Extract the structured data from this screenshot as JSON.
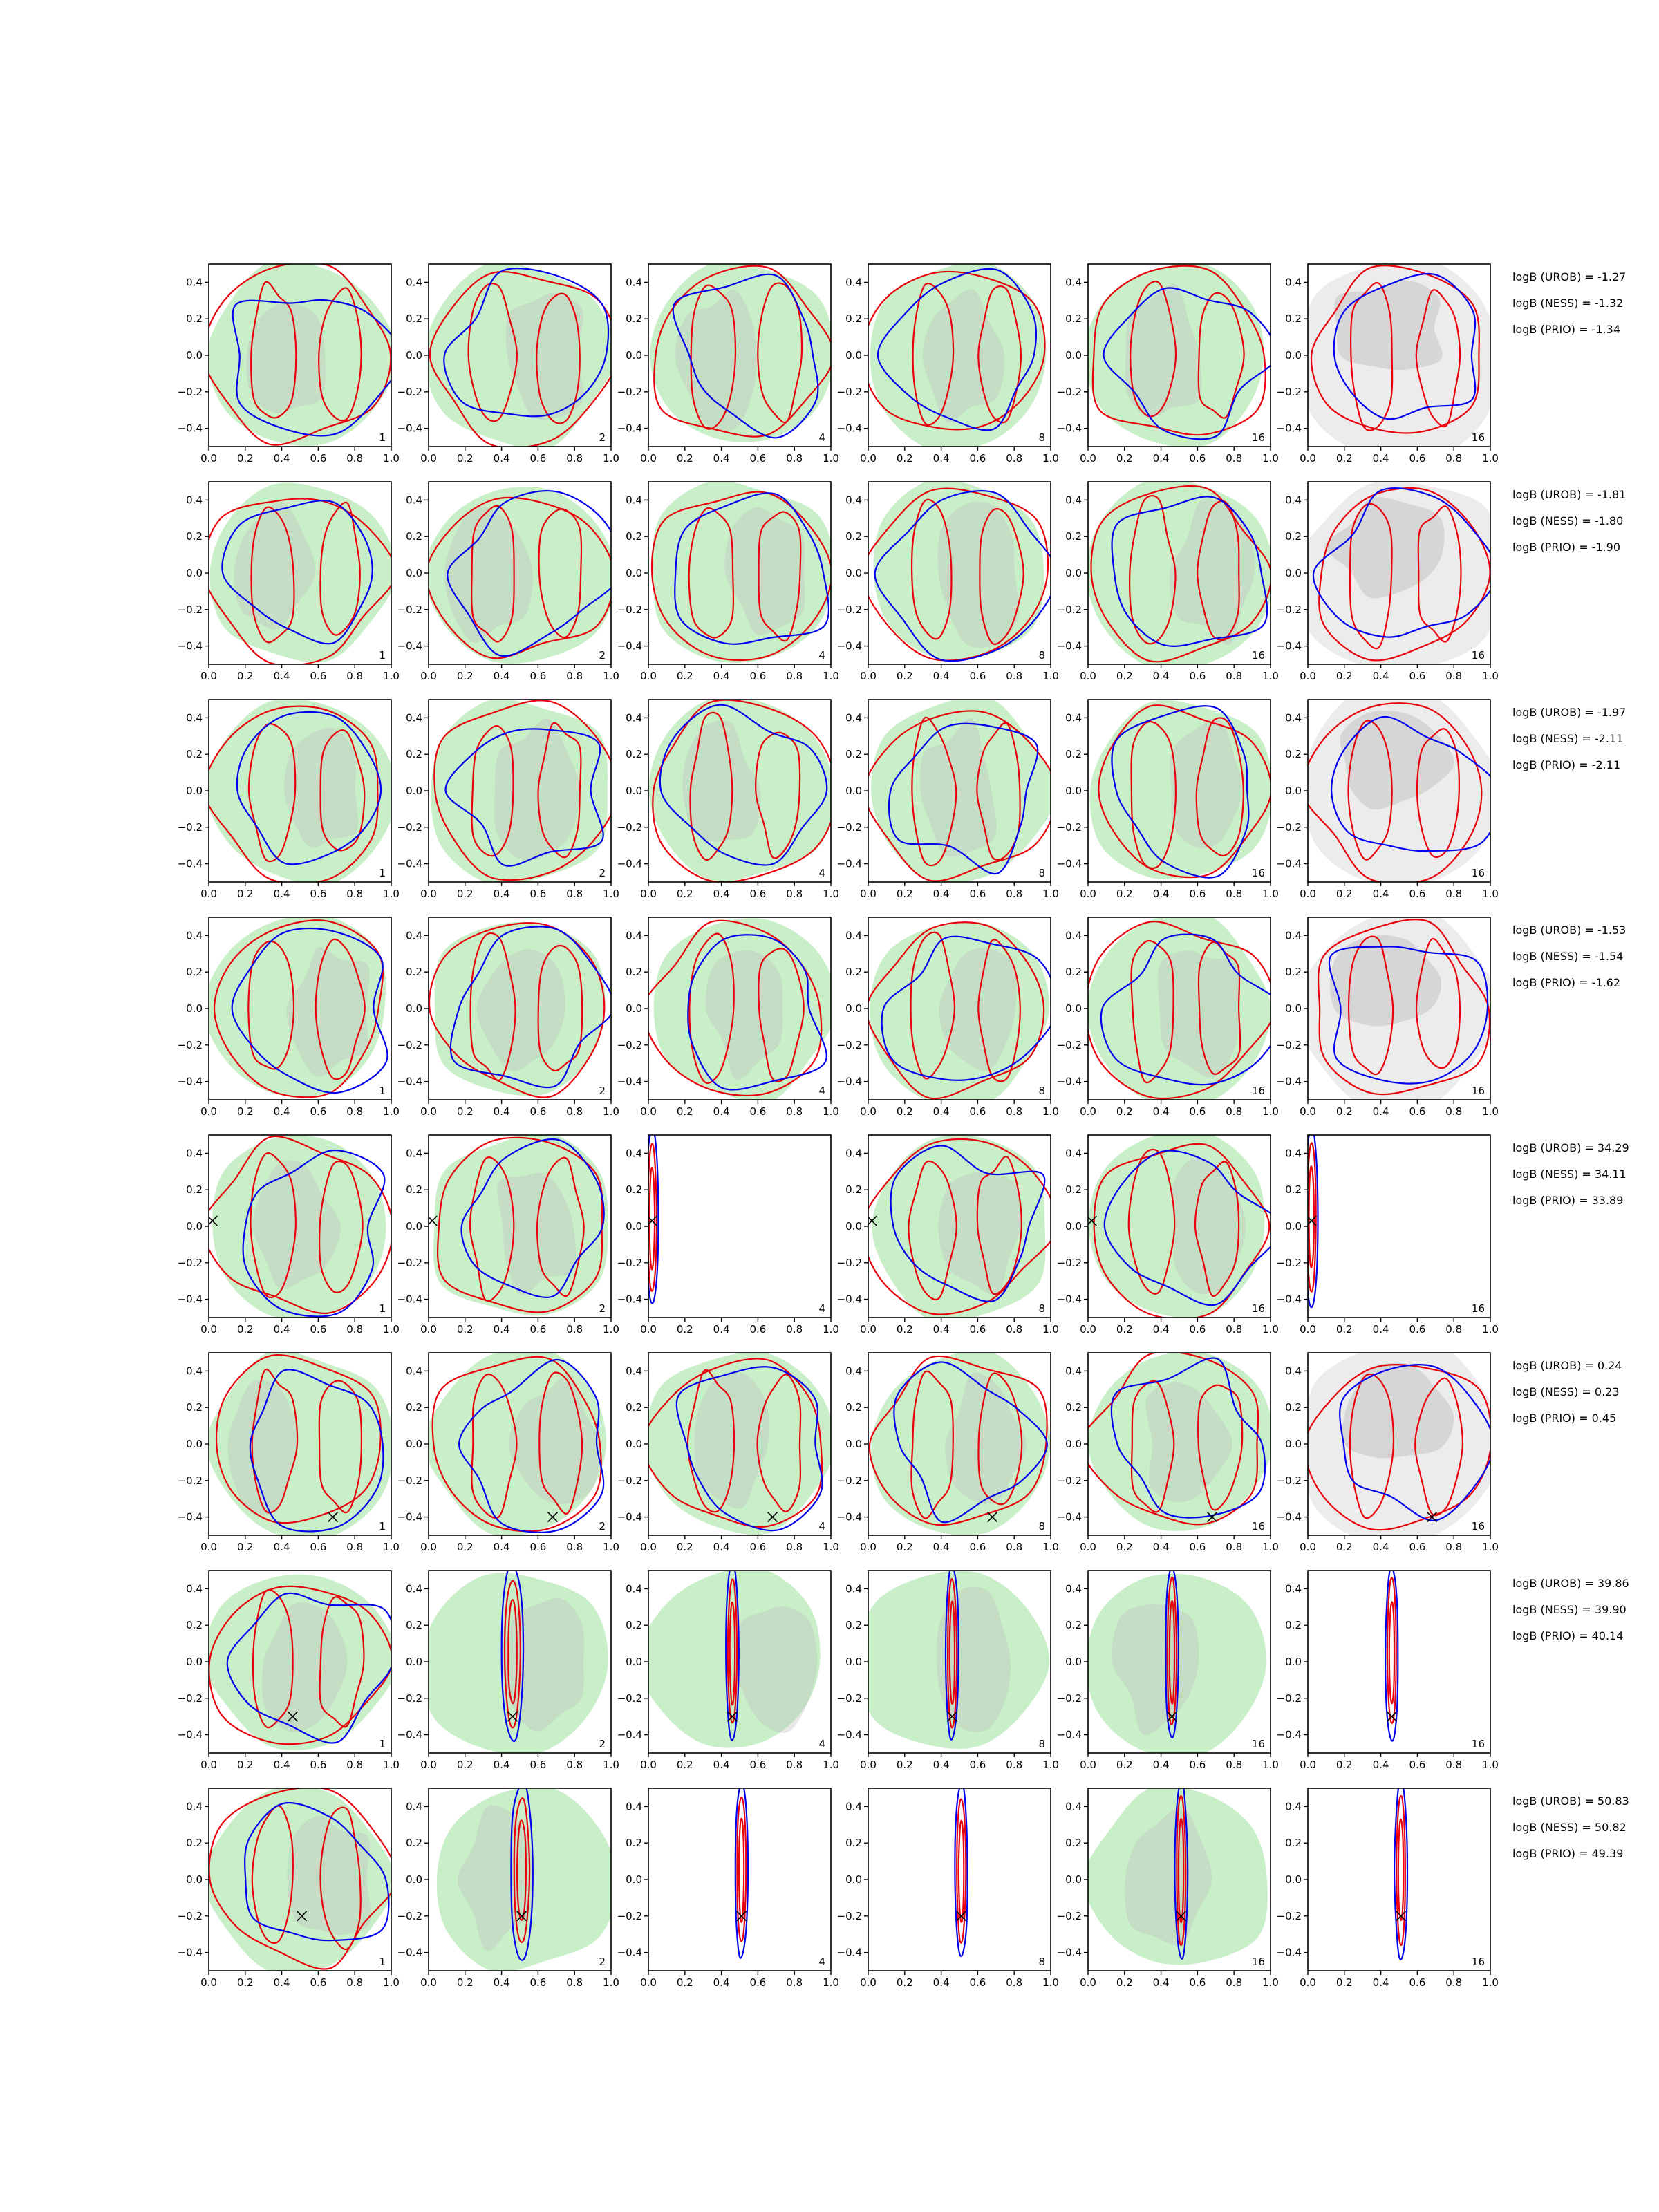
{
  "chart_data": {
    "type": "contour",
    "layout": {
      "rows": 8,
      "cols": 6
    },
    "xlim": [
      0.0,
      1.0
    ],
    "ylim": [
      -0.5,
      0.5
    ],
    "xticks": [
      0.0,
      0.2,
      0.4,
      0.6,
      0.8,
      1.0
    ],
    "xtick_labels": [
      "0.0",
      "0.2",
      "0.4",
      "0.6",
      "0.8",
      "1.0"
    ],
    "yticks": [
      -0.4,
      -0.2,
      0.0,
      0.2,
      0.4
    ],
    "ytick_labels": [
      "−0.4",
      "−0.2",
      "0.0",
      "0.2",
      "0.4"
    ],
    "panel_labels": [
      "1",
      "2",
      "4",
      "8",
      "16",
      "16"
    ],
    "colors": {
      "red": "#e8000b",
      "blue": "#0000ee",
      "green_fill": "#c8efc8",
      "gray_fill": "#bdbdbd",
      "light_gray": "#ececec"
    },
    "rows": [
      {
        "texts": [
          "logB (UROB) = -1.27",
          "logB (NESS) = -1.32",
          "logB (PRIO) = -1.34"
        ],
        "truth": null
      },
      {
        "texts": [
          "logB (UROB) = -1.81",
          "logB (NESS) = -1.80",
          "logB (PRIO) = -1.90"
        ],
        "truth": null
      },
      {
        "texts": [
          "logB (UROB) = -1.97",
          "logB (NESS) = -2.11",
          "logB (PRIO) = -2.11"
        ],
        "truth": null
      },
      {
        "texts": [
          "logB (UROB) = -1.53",
          "logB (NESS) = -1.54",
          "logB (PRIO) = -1.62"
        ],
        "truth": null
      },
      {
        "texts": [
          "logB (UROB) = 34.29",
          "logB (NESS) = 34.11",
          "logB (PRIO) = 33.89"
        ],
        "truth": [
          0.02,
          0.03
        ]
      },
      {
        "texts": [
          "logB (UROB) = 0.24",
          "logB (NESS) = 0.23",
          "logB (PRIO) = 0.45"
        ],
        "truth": [
          0.68,
          -0.4
        ]
      },
      {
        "texts": [
          "logB (UROB) = 39.86",
          "logB (NESS) = 39.90",
          "logB (PRIO) = 40.14"
        ],
        "truth": [
          0.46,
          -0.3
        ]
      },
      {
        "texts": [
          "logB (UROB) = 50.83",
          "logB (NESS) = 50.82",
          "logB (PRIO) = 49.39"
        ],
        "truth": [
          0.51,
          -0.2
        ]
      }
    ]
  }
}
